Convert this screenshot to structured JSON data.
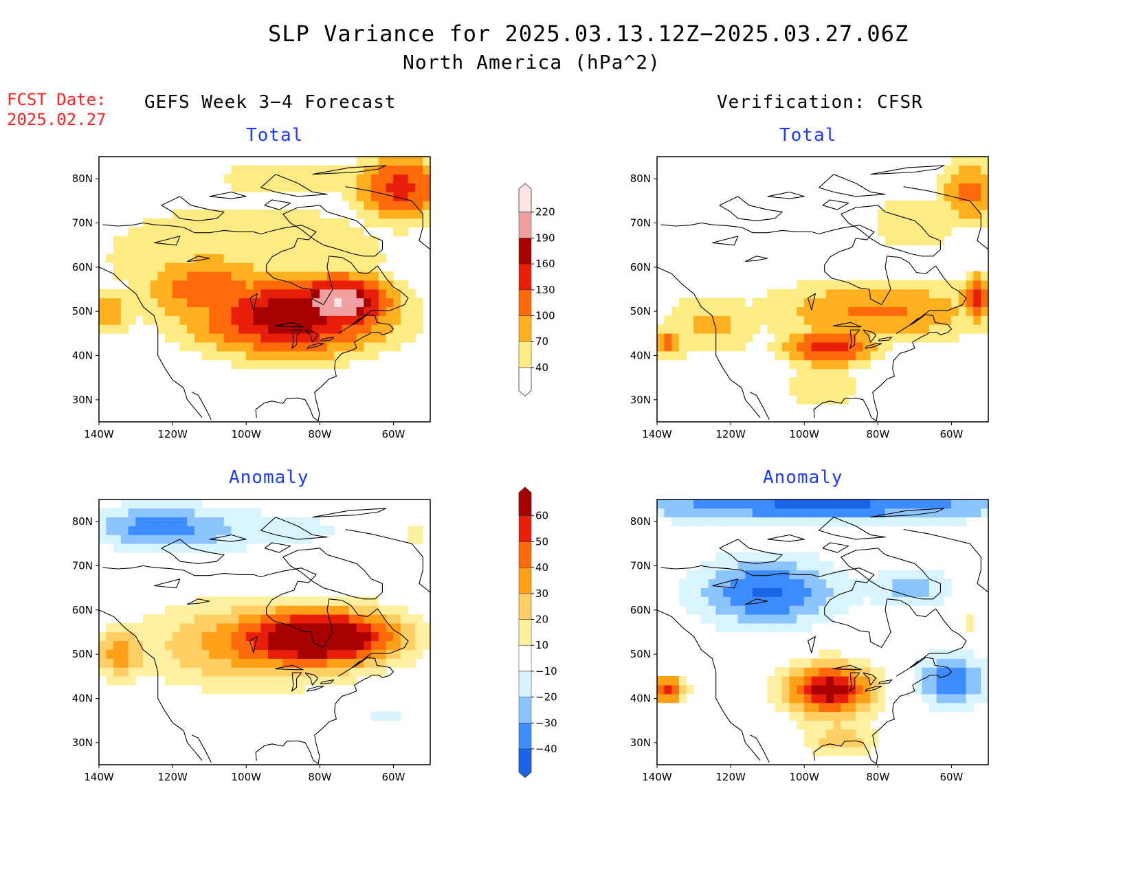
{
  "header": {
    "title": "SLP Variance for 2025.03.13.12Z−2025.03.27.06Z",
    "subtitle": "North America (hPa^2)",
    "fcst_label": "FCST Date:",
    "fcst_date": "2025.02.27",
    "left_column": "GEFS Week 3−4 Forecast",
    "right_column": "Verification: CFSR"
  },
  "chart_data": [
    {
      "type": "heatmap",
      "title": "Total",
      "source": "GEFS Week 3−4 Forecast",
      "xlabel": "",
      "ylabel": "",
      "xlim": [
        -140,
        -50
      ],
      "ylim": [
        25,
        85
      ],
      "x_ticks": [
        "140W",
        "120W",
        "100W",
        "80W",
        "60W"
      ],
      "y_ticks": [
        "30N",
        "40N",
        "50N",
        "60N",
        "70N",
        "80N"
      ],
      "features": [
        {
          "lon": -75,
          "lat": 52,
          "value": 220,
          "spread": [
            16,
            7
          ]
        },
        {
          "lon": -88,
          "lat": 49,
          "value": 180,
          "spread": [
            30,
            10
          ]
        },
        {
          "lon": -58,
          "lat": 78,
          "value": 140,
          "spread": [
            14,
            9
          ]
        },
        {
          "lon": -110,
          "lat": 55,
          "value": 120,
          "spread": [
            22,
            10
          ]
        },
        {
          "lon": -138,
          "lat": 50,
          "value": 100,
          "spread": [
            8,
            6
          ]
        },
        {
          "lon": -100,
          "lat": 62,
          "value": 70,
          "spread": [
            50,
            16
          ]
        },
        {
          "lon": -85,
          "lat": 80,
          "value": 50,
          "spread": [
            45,
            8
          ]
        }
      ]
    },
    {
      "type": "heatmap",
      "title": "Total",
      "source": "Verification: CFSR",
      "xlabel": "",
      "ylabel": "",
      "xlim": [
        -140,
        -50
      ],
      "ylim": [
        25,
        85
      ],
      "x_ticks": [
        "140W",
        "120W",
        "100W",
        "80W",
        "60W"
      ],
      "y_ticks": [
        "30N",
        "40N",
        "50N",
        "60N",
        "70N",
        "80N"
      ],
      "features": [
        {
          "lon": -93,
          "lat": 42,
          "value": 150,
          "spread": [
            14,
            5
          ]
        },
        {
          "lon": -53,
          "lat": 53,
          "value": 150,
          "spread": [
            5,
            6
          ]
        },
        {
          "lon": -80,
          "lat": 50,
          "value": 105,
          "spread": [
            35,
            8
          ]
        },
        {
          "lon": -55,
          "lat": 77,
          "value": 110,
          "spread": [
            10,
            8
          ]
        },
        {
          "lon": -137,
          "lat": 43,
          "value": 115,
          "spread": [
            6,
            4
          ]
        },
        {
          "lon": -125,
          "lat": 47,
          "value": 80,
          "spread": [
            16,
            8
          ]
        },
        {
          "lon": -95,
          "lat": 33,
          "value": 55,
          "spread": [
            15,
            8
          ]
        },
        {
          "lon": -70,
          "lat": 70,
          "value": 55,
          "spread": [
            18,
            10
          ]
        }
      ]
    },
    {
      "type": "heatmap",
      "title": "Anomaly",
      "source": "GEFS Week 3−4 Forecast",
      "xlabel": "",
      "ylabel": "",
      "xlim": [
        -140,
        -50
      ],
      "ylim": [
        25,
        85
      ],
      "x_ticks": [
        "140W",
        "120W",
        "100W",
        "80W",
        "60W"
      ],
      "y_ticks": [
        "30N",
        "40N",
        "50N",
        "60N",
        "70N",
        "80N"
      ],
      "features": [
        {
          "lon": -77,
          "lat": 54,
          "value": 66,
          "spread": [
            20,
            6
          ]
        },
        {
          "lon": -100,
          "lat": 52,
          "value": 32,
          "spread": [
            30,
            10
          ]
        },
        {
          "lon": -135,
          "lat": 50,
          "value": 30,
          "spread": [
            6,
            5
          ]
        },
        {
          "lon": -125,
          "lat": 79,
          "value": -26,
          "spread": [
            18,
            5
          ]
        },
        {
          "lon": -100,
          "lat": 78,
          "value": -14,
          "spread": [
            40,
            6
          ]
        },
        {
          "lon": -55,
          "lat": 77,
          "value": 16,
          "spread": [
            9,
            3
          ]
        },
        {
          "lon": -62,
          "lat": 36,
          "value": -12,
          "spread": [
            10,
            4
          ]
        }
      ]
    },
    {
      "type": "heatmap",
      "title": "Anomaly",
      "source": "Verification: CFSR",
      "xlabel": "",
      "ylabel": "",
      "xlim": [
        -140,
        -50
      ],
      "ylim": [
        25,
        85
      ],
      "x_ticks": [
        "140W",
        "120W",
        "100W",
        "80W",
        "60W"
      ],
      "y_ticks": [
        "30N",
        "40N",
        "50N",
        "60N",
        "70N",
        "80N"
      ],
      "features": [
        {
          "lon": -95,
          "lat": 84,
          "value": -42,
          "spread": [
            60,
            4
          ]
        },
        {
          "lon": -110,
          "lat": 64,
          "value": -42,
          "spread": [
            20,
            8
          ]
        },
        {
          "lon": -93,
          "lat": 42,
          "value": 68,
          "spread": [
            12,
            6
          ]
        },
        {
          "lon": -137,
          "lat": 42,
          "value": 55,
          "spread": [
            5,
            3
          ]
        },
        {
          "lon": -60,
          "lat": 44,
          "value": -38,
          "spread": [
            10,
            6
          ]
        },
        {
          "lon": -70,
          "lat": 65,
          "value": -25,
          "spread": [
            10,
            5
          ]
        },
        {
          "lon": -90,
          "lat": 30,
          "value": 25,
          "spread": [
            10,
            4
          ]
        },
        {
          "lon": -55,
          "lat": 57,
          "value": 15,
          "spread": [
            3,
            4
          ]
        }
      ]
    }
  ],
  "colorbars": {
    "total": {
      "labels": [
        "40",
        "70",
        "100",
        "130",
        "160",
        "190",
        "220"
      ],
      "colors": [
        "#ffffff",
        "#ffeb84",
        "#ffb01e",
        "#ff6a0a",
        "#e81e0a",
        "#a80000",
        "#f0a0a0",
        "#fde4e4"
      ]
    },
    "anomaly": {
      "labels": [
        "−40",
        "−30",
        "−20",
        "−10",
        "10",
        "20",
        "30",
        "40",
        "50",
        "60"
      ],
      "colors": [
        "#1a64e8",
        "#3c8cff",
        "#8cc4ff",
        "#d8f4ff",
        "#ffffff",
        "#fff0a0",
        "#ffce64",
        "#ffa018",
        "#ff6a0a",
        "#e81e0a",
        "#a80000"
      ]
    }
  }
}
